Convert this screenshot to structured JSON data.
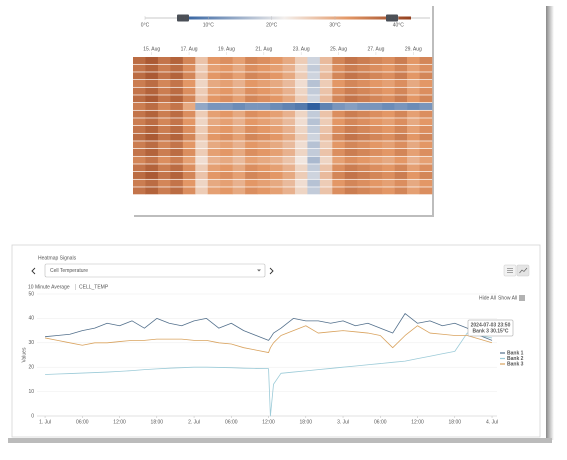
{
  "chart_data": [
    {
      "type": "heatmap",
      "x_labels": [
        "15. Aug",
        "17. Aug",
        "19. Aug",
        "21. Aug",
        "23. Aug",
        "25. Aug",
        "27. Aug",
        "29. Aug"
      ],
      "values": [
        [
          37,
          39,
          36,
          38,
          34,
          27,
          32,
          33,
          31,
          34,
          33,
          32,
          30,
          26,
          19,
          28,
          34,
          36,
          35,
          34,
          33,
          35,
          32,
          34
        ],
        [
          36,
          38,
          35,
          37,
          33,
          26,
          31,
          32,
          30,
          33,
          32,
          31,
          29,
          25,
          18,
          27,
          33,
          35,
          34,
          33,
          32,
          34,
          31,
          33
        ],
        [
          37,
          39,
          36,
          38,
          34,
          27,
          32,
          33,
          31,
          34,
          33,
          32,
          30,
          26,
          19,
          28,
          34,
          36,
          35,
          34,
          33,
          35,
          32,
          34
        ],
        [
          35,
          37,
          34,
          36,
          32,
          25,
          30,
          31,
          29,
          32,
          31,
          30,
          28,
          24,
          17,
          26,
          32,
          34,
          33,
          32,
          31,
          33,
          30,
          32
        ],
        [
          36,
          38,
          35,
          37,
          33,
          26,
          31,
          32,
          30,
          33,
          32,
          31,
          29,
          25,
          18,
          27,
          33,
          35,
          34,
          33,
          32,
          34,
          31,
          33
        ],
        [
          37,
          39,
          36,
          38,
          34,
          27,
          32,
          33,
          31,
          34,
          33,
          32,
          30,
          26,
          19,
          28,
          34,
          36,
          35,
          34,
          33,
          35,
          32,
          34
        ],
        [
          35,
          37,
          34,
          36,
          30,
          14,
          12,
          12,
          11,
          12,
          12,
          11,
          10,
          9,
          6,
          10,
          12,
          13,
          12,
          12,
          11,
          12,
          11,
          12
        ],
        [
          36,
          38,
          35,
          37,
          33,
          26,
          31,
          32,
          30,
          33,
          32,
          31,
          29,
          25,
          18,
          27,
          33,
          35,
          34,
          33,
          32,
          34,
          31,
          33
        ],
        [
          35,
          37,
          34,
          36,
          32,
          25,
          30,
          31,
          29,
          32,
          31,
          30,
          28,
          24,
          17,
          26,
          32,
          34,
          33,
          32,
          31,
          33,
          30,
          32
        ],
        [
          36,
          38,
          35,
          37,
          33,
          26,
          31,
          32,
          30,
          33,
          32,
          31,
          29,
          25,
          18,
          27,
          33,
          35,
          34,
          33,
          32,
          34,
          31,
          33
        ],
        [
          37,
          39,
          36,
          38,
          34,
          27,
          32,
          33,
          31,
          34,
          33,
          32,
          30,
          26,
          19,
          28,
          34,
          36,
          35,
          34,
          33,
          35,
          32,
          34
        ],
        [
          35,
          37,
          34,
          36,
          32,
          25,
          30,
          31,
          29,
          32,
          31,
          30,
          28,
          24,
          17,
          26,
          32,
          34,
          33,
          32,
          31,
          33,
          30,
          32
        ],
        [
          36,
          38,
          35,
          37,
          33,
          26,
          31,
          32,
          30,
          33,
          32,
          31,
          29,
          25,
          18,
          27,
          33,
          35,
          34,
          33,
          32,
          34,
          31,
          33
        ],
        [
          34,
          36,
          33,
          35,
          31,
          24,
          29,
          30,
          28,
          31,
          30,
          29,
          27,
          23,
          16,
          25,
          31,
          33,
          32,
          31,
          30,
          32,
          29,
          31
        ],
        [
          36,
          38,
          35,
          37,
          33,
          26,
          31,
          32,
          30,
          33,
          32,
          31,
          29,
          25,
          18,
          27,
          33,
          35,
          34,
          33,
          32,
          34,
          31,
          33
        ],
        [
          37,
          39,
          36,
          38,
          34,
          27,
          32,
          33,
          31,
          34,
          33,
          32,
          30,
          26,
          19,
          28,
          34,
          36,
          35,
          34,
          33,
          35,
          32,
          34
        ],
        [
          35,
          37,
          34,
          36,
          32,
          25,
          30,
          31,
          29,
          32,
          31,
          30,
          28,
          24,
          17,
          26,
          32,
          34,
          33,
          32,
          31,
          33,
          30,
          32
        ],
        [
          36,
          38,
          35,
          37,
          33,
          26,
          31,
          32,
          30,
          33,
          32,
          31,
          29,
          25,
          18,
          27,
          33,
          35,
          34,
          33,
          32,
          34,
          31,
          33
        ]
      ],
      "colorscale": [
        [
          6,
          "#2f5f9f"
        ],
        [
          22,
          "#f3efec"
        ],
        [
          32,
          "#e39766"
        ],
        [
          42,
          "#93401f"
        ]
      ],
      "zlim": [
        0,
        45
      ],
      "zticks": [
        {
          "value": 0,
          "label": "0°C"
        },
        {
          "value": 10,
          "label": "10°C"
        },
        {
          "value": 20,
          "label": "20°C"
        },
        {
          "value": 30,
          "label": "30°C"
        },
        {
          "value": 40,
          "label": "40°C"
        }
      ],
      "range_badges": [
        {
          "value": 6,
          "label": "6°C"
        },
        {
          "value": 39,
          "label": "39°C"
        }
      ]
    },
    {
      "type": "line",
      "title": "10 Minute Average",
      "subtitle": "CELL_TEMP",
      "ylabel": "Values",
      "x": [
        0,
        2,
        4,
        6,
        8,
        10,
        12,
        14,
        16,
        18,
        20,
        22,
        24,
        26,
        28,
        30,
        32,
        34,
        36,
        36.3,
        36.8,
        38,
        40,
        42,
        44,
        46,
        48,
        50,
        52,
        54,
        56,
        58,
        60,
        62,
        64,
        66,
        68,
        70,
        72
      ],
      "xlim": [
        -1.3,
        72.8
      ],
      "xticks": [
        {
          "value": 0,
          "label": "1. Jul"
        },
        {
          "value": 6,
          "label": "06:00"
        },
        {
          "value": 12,
          "label": "12:00"
        },
        {
          "value": 18,
          "label": "18:00"
        },
        {
          "value": 24,
          "label": "2. Jul"
        },
        {
          "value": 30,
          "label": "06:00"
        },
        {
          "value": 36,
          "label": "12:00"
        },
        {
          "value": 42,
          "label": "18:00"
        },
        {
          "value": 48,
          "label": "3. Jul"
        },
        {
          "value": 54,
          "label": "06:00"
        },
        {
          "value": 60,
          "label": "12:00"
        },
        {
          "value": 66,
          "label": "18:00"
        },
        {
          "value": 72,
          "label": "4. Jul"
        }
      ],
      "ylim": [
        0,
        50
      ],
      "yticks": [
        0,
        10,
        20,
        30,
        40,
        50
      ],
      "grid": true,
      "legend": "right",
      "series": [
        {
          "name": "Bank 1",
          "color": "#53708c",
          "values": [
            32.5,
            33,
            33.5,
            35,
            36,
            38,
            37,
            39,
            36,
            40,
            38,
            37,
            39,
            40,
            36,
            38,
            35,
            33,
            31,
            32,
            34,
            36,
            40,
            39,
            39,
            38,
            39,
            37,
            38,
            36,
            34,
            42,
            38,
            39,
            37,
            38,
            36,
            33,
            31
          ]
        },
        {
          "name": "Bank 2",
          "color": "#9ccbd8",
          "values": [
            17,
            17.2,
            17.4,
            17.6,
            17.8,
            18,
            18.3,
            18.6,
            19,
            19.3,
            19.6,
            19.8,
            20,
            20,
            19.9,
            19.8,
            19.6,
            19.5,
            19.4,
            0,
            13,
            17.5,
            18,
            18.5,
            19,
            19.5,
            20,
            20.5,
            21,
            21.5,
            22,
            22.5,
            23.5,
            24.5,
            25.5,
            26.5,
            34,
            33,
            32
          ]
        },
        {
          "name": "Bank 3",
          "color": "#d9a35f",
          "values": [
            32,
            31,
            30,
            29,
            30,
            30,
            30.5,
            31,
            31,
            31.5,
            31.5,
            31.5,
            31,
            31,
            30,
            29.5,
            28,
            27,
            26,
            28,
            30,
            33,
            35,
            37,
            34,
            34.5,
            35,
            34.5,
            34,
            33,
            28,
            33,
            37,
            34,
            33.5,
            33,
            33,
            31.5,
            30
          ]
        }
      ],
      "tooltip": {
        "title": "2024-07-03 23:50",
        "text": "Bank 3 30.15°C"
      }
    }
  ],
  "ui": {
    "signals_label": "Heatmap Signals",
    "selected_signal": "Cell Temperature",
    "hide_all": "Hide All",
    "show_all": "Show All"
  }
}
